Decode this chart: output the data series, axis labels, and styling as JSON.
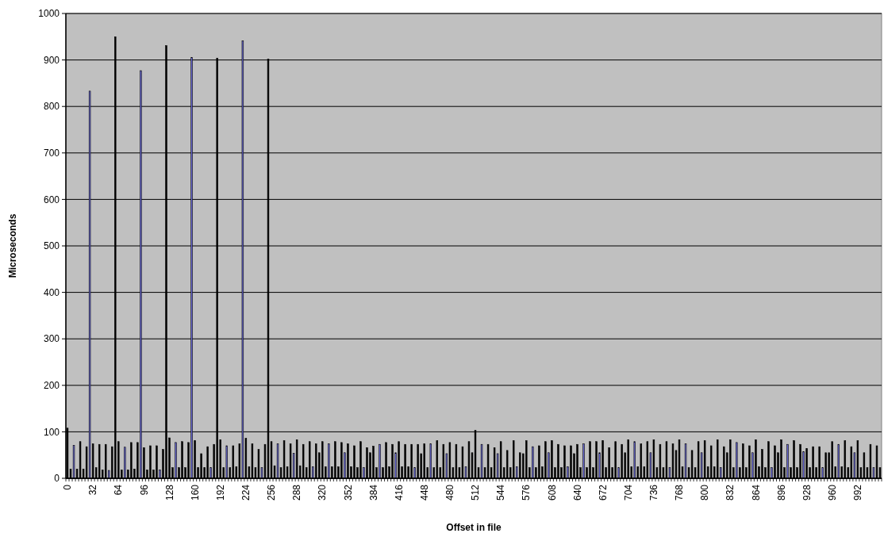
{
  "chart_data": {
    "type": "bar",
    "xlabel": "Offset in file",
    "ylabel": "Microseconds",
    "categories": [
      "0",
      null,
      null,
      null,
      null,
      null,
      null,
      null,
      "32",
      null,
      null,
      null,
      null,
      null,
      null,
      null,
      "64",
      null,
      null,
      null,
      null,
      null,
      null,
      null,
      "96",
      null,
      null,
      null,
      null,
      null,
      null,
      null,
      "128",
      null,
      null,
      null,
      null,
      null,
      null,
      null,
      "160",
      null,
      null,
      null,
      null,
      null,
      null,
      null,
      "192",
      null,
      null,
      null,
      null,
      null,
      null,
      null,
      "224",
      null,
      null,
      null,
      null,
      null,
      null,
      null,
      "256",
      null,
      null,
      null,
      null,
      null,
      null,
      null,
      "288",
      null,
      null,
      null,
      null,
      null,
      null,
      null,
      "320",
      null,
      null,
      null,
      null,
      null,
      null,
      null,
      "352",
      null,
      null,
      null,
      null,
      null,
      null,
      null,
      "384",
      null,
      null,
      null,
      null,
      null,
      null,
      null,
      "416",
      null,
      null,
      null,
      null,
      null,
      null,
      null,
      "448",
      null,
      null,
      null,
      null,
      null,
      null,
      null,
      "480",
      null,
      null,
      null,
      null,
      null,
      null,
      null,
      "512",
      null,
      null,
      null,
      null,
      null,
      null,
      null,
      "544",
      null,
      null,
      null,
      null,
      null,
      null,
      null,
      "576",
      null,
      null,
      null,
      null,
      null,
      null,
      null,
      "608",
      null,
      null,
      null,
      null,
      null,
      null,
      null,
      "640",
      null,
      null,
      null,
      null,
      null,
      null,
      null,
      "672",
      null,
      null,
      null,
      null,
      null,
      null,
      null,
      "704",
      null,
      null,
      null,
      null,
      null,
      null,
      null,
      "736",
      null,
      null,
      null,
      null,
      null,
      null,
      null,
      "768",
      null,
      null,
      null,
      null,
      null,
      null,
      null,
      "800",
      null,
      null,
      null,
      null,
      null,
      null,
      null,
      "832",
      null,
      null,
      null,
      null,
      null,
      null,
      null,
      "864",
      null,
      null,
      null,
      null,
      null,
      null,
      null,
      "896",
      null,
      null,
      null,
      null,
      null,
      null,
      null,
      "928",
      null,
      null,
      null,
      null,
      null,
      null,
      null,
      "960",
      null,
      null,
      null,
      null,
      null,
      null,
      null,
      "992",
      null,
      null,
      null,
      null,
      null,
      null,
      null
    ],
    "values": [
      108,
      20,
      71,
      20,
      79,
      20,
      68,
      833,
      74,
      23,
      73,
      18,
      73,
      17,
      68,
      950,
      79,
      18,
      67,
      18,
      77,
      20,
      77,
      877,
      66,
      18,
      70,
      18,
      70,
      18,
      62,
      931,
      87,
      23,
      77,
      23,
      79,
      23,
      77,
      905,
      81,
      23,
      53,
      23,
      68,
      23,
      73,
      904,
      83,
      23,
      70,
      23,
      70,
      25,
      74,
      941,
      86,
      25,
      74,
      23,
      62,
      23,
      73,
      902,
      79,
      27,
      74,
      23,
      81,
      25,
      74,
      54,
      83,
      27,
      73,
      23,
      79,
      25,
      74,
      55,
      79,
      25,
      74,
      25,
      79,
      25,
      77,
      55,
      74,
      25,
      70,
      23,
      79,
      23,
      66,
      55,
      69,
      23,
      73,
      23,
      77,
      25,
      73,
      55,
      79,
      25,
      73,
      25,
      73,
      23,
      73,
      53,
      74,
      23,
      74,
      23,
      81,
      23,
      73,
      53,
      77,
      23,
      73,
      23,
      68,
      25,
      79,
      55,
      103,
      23,
      73,
      23,
      73,
      23,
      66,
      53,
      79,
      23,
      60,
      23,
      81,
      25,
      55,
      53,
      81,
      23,
      68,
      23,
      70,
      25,
      79,
      55,
      81,
      23,
      73,
      23,
      70,
      25,
      70,
      53,
      73,
      23,
      74,
      23,
      79,
      23,
      79,
      55,
      81,
      23,
      66,
      23,
      79,
      23,
      73,
      55,
      83,
      25,
      79,
      25,
      74,
      25,
      79,
      55,
      83,
      23,
      73,
      23,
      79,
      23,
      74,
      60,
      83,
      25,
      74,
      23,
      60,
      23,
      79,
      55,
      81,
      25,
      70,
      25,
      83,
      23,
      68,
      55,
      83,
      23,
      77,
      23,
      74,
      23,
      70,
      55,
      83,
      25,
      62,
      23,
      79,
      23,
      70,
      55,
      83,
      23,
      73,
      23,
      81,
      23,
      73,
      57,
      64,
      23,
      68,
      23,
      68,
      23,
      55,
      55,
      79,
      25,
      73,
      25,
      81,
      23,
      68,
      55,
      81,
      23,
      55,
      23,
      73,
      23,
      70,
      23
    ],
    "colors": [
      "#000000",
      "#000000",
      "#6b6bd6",
      "#000000",
      "#000000",
      "#000000",
      "#000000",
      "#6b6bd6",
      "#000000",
      "#000000",
      "#000000",
      "#000000",
      "#000000",
      "#6b6bd6",
      "#000000",
      "#000000",
      "#000000",
      "#000000",
      "#6b6bd6",
      "#000000",
      "#000000",
      "#000000",
      "#000000",
      "#6b6bd6",
      "#000000",
      "#000000",
      "#000000",
      "#000000",
      "#000000",
      "#6b6bd6",
      "#000000",
      "#000000",
      "#000000",
      "#000000",
      "#6b6bd6",
      "#000000",
      "#000000",
      "#000000",
      "#000000",
      "#6b6bd6",
      "#000000",
      "#000000",
      "#000000",
      "#000000",
      "#000000",
      "#6b6bd6",
      "#000000",
      "#000000",
      "#000000",
      "#000000",
      "#6b6bd6",
      "#000000",
      "#000000",
      "#000000",
      "#000000",
      "#6b6bd6",
      "#000000",
      "#000000",
      "#000000",
      "#000000",
      "#000000",
      "#6b6bd6",
      "#000000",
      "#000000",
      "#000000",
      "#000000",
      "#6b6bd6",
      "#000000",
      "#000000",
      "#000000",
      "#000000",
      "#6b6bd6",
      "#000000",
      "#000000",
      "#000000",
      "#000000",
      "#000000",
      "#6b6bd6",
      "#000000",
      "#000000",
      "#000000",
      "#000000",
      "#6b6bd6",
      "#000000",
      "#000000",
      "#000000",
      "#000000",
      "#6b6bd6",
      "#000000",
      "#000000",
      "#000000",
      "#000000",
      "#000000",
      "#6b6bd6",
      "#000000",
      "#000000",
      "#000000",
      "#000000",
      "#6b6bd6",
      "#000000",
      "#000000",
      "#000000",
      "#000000",
      "#6b6bd6",
      "#000000",
      "#000000",
      "#000000",
      "#000000",
      "#000000",
      "#6b6bd6",
      "#000000",
      "#000000",
      "#000000",
      "#000000",
      "#6b6bd6",
      "#000000",
      "#000000",
      "#000000",
      "#000000",
      "#6b6bd6",
      "#000000",
      "#000000",
      "#000000",
      "#000000",
      "#000000",
      "#6b6bd6",
      "#000000",
      "#000000",
      "#000000",
      "#000000",
      "#6b6bd6",
      "#000000",
      "#000000",
      "#000000",
      "#000000",
      "#6b6bd6",
      "#000000",
      "#000000",
      "#000000",
      "#000000",
      "#000000",
      "#6b6bd6",
      "#000000",
      "#000000",
      "#000000",
      "#000000",
      "#6b6bd6",
      "#000000",
      "#000000",
      "#000000",
      "#000000",
      "#6b6bd6",
      "#000000",
      "#000000",
      "#000000",
      "#000000",
      "#000000",
      "#6b6bd6",
      "#000000",
      "#000000",
      "#000000",
      "#000000",
      "#6b6bd6",
      "#000000",
      "#000000",
      "#000000",
      "#000000",
      "#6b6bd6",
      "#000000",
      "#000000",
      "#000000",
      "#000000",
      "#000000",
      "#6b6bd6",
      "#000000",
      "#000000",
      "#000000",
      "#000000",
      "#6b6bd6",
      "#000000",
      "#000000",
      "#000000",
      "#000000",
      "#6b6bd6",
      "#000000",
      "#000000",
      "#000000",
      "#000000",
      "#000000",
      "#6b6bd6",
      "#000000",
      "#000000",
      "#000000",
      "#000000",
      "#6b6bd6",
      "#000000",
      "#000000",
      "#000000",
      "#000000",
      "#6b6bd6",
      "#000000",
      "#000000",
      "#000000",
      "#000000",
      "#000000",
      "#6b6bd6",
      "#000000",
      "#000000",
      "#000000",
      "#000000",
      "#6b6bd6",
      "#000000",
      "#000000",
      "#000000",
      "#000000",
      "#6b6bd6",
      "#000000",
      "#000000",
      "#000000",
      "#000000",
      "#000000",
      "#6b6bd6",
      "#000000",
      "#000000",
      "#000000",
      "#000000",
      "#6b6bd6",
      "#000000",
      "#000000",
      "#000000",
      "#000000",
      "#6b6bd6",
      "#000000",
      "#000000",
      "#000000",
      "#000000",
      "#000000",
      "#6b6bd6",
      "#000000",
      "#000000",
      "#000000",
      "#000000",
      "#6b6bd6",
      "#000000",
      "#000000",
      "#000000",
      "#000000",
      "#6b6bd6",
      "#000000",
      "#000000",
      "#000000",
      "#000000",
      "#000000",
      "#6b6bd6",
      "#000000",
      "#000000"
    ],
    "ylim": [
      0,
      1000
    ],
    "yticks": [
      0,
      100,
      200,
      300,
      400,
      500,
      600,
      700,
      800,
      900,
      1000
    ],
    "grid": "y"
  }
}
